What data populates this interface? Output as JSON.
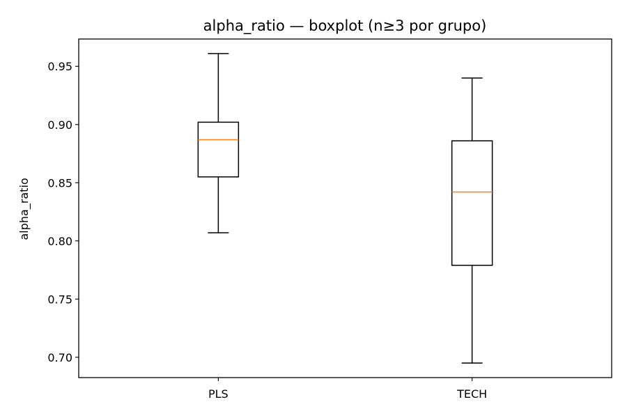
{
  "chart_data": {
    "type": "boxplot",
    "title": "alpha_ratio — boxplot (n≥3 por grupo)",
    "xlabel": "",
    "ylabel": "alpha_ratio",
    "ylim": [
      0.6825,
      0.9735
    ],
    "yticks": [
      0.7,
      0.75,
      0.8,
      0.85,
      0.9,
      0.95
    ],
    "ytick_labels": [
      "0.70",
      "0.75",
      "0.80",
      "0.85",
      "0.90",
      "0.95"
    ],
    "categories": [
      "PLS",
      "TECH"
    ],
    "grid": false,
    "median_color": "#ff7f0e",
    "box_color": "#000000",
    "boxes": [
      {
        "category": "PLS",
        "whisker_low": 0.807,
        "q1": 0.855,
        "median": 0.887,
        "q3": 0.902,
        "whisker_high": 0.961
      },
      {
        "category": "TECH",
        "whisker_low": 0.695,
        "q1": 0.779,
        "median": 0.842,
        "q3": 0.886,
        "whisker_high": 0.94
      }
    ]
  }
}
